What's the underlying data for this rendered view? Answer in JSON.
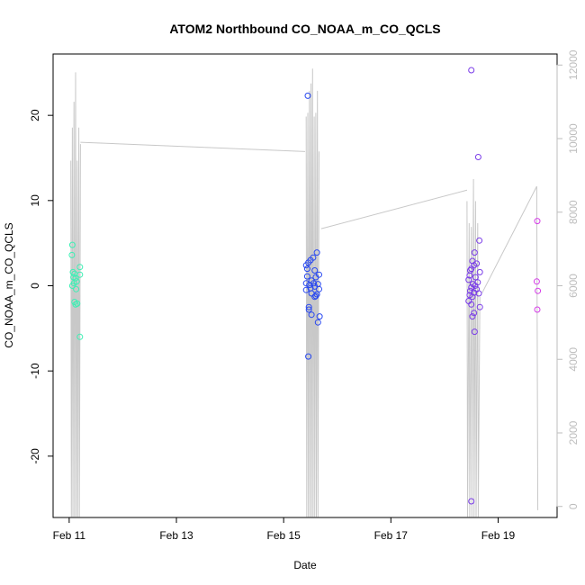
{
  "chart_data": {
    "type": "scatter",
    "title": "ATOM2 Northbound CO_NOAA_m_CO_QCLS",
    "xlabel": "Date",
    "ylabel": "CO_NOAA_m_CO_QCLS",
    "x_ticks": [
      "Feb 11",
      "Feb 13",
      "Feb 15",
      "Feb 17",
      "Feb 19"
    ],
    "x_tick_values": [
      11,
      13,
      15,
      17,
      19
    ],
    "xlim": [
      10.7,
      20.1
    ],
    "ylim": [
      -27.2,
      27.2
    ],
    "y_ticks": [
      -20,
      -10,
      0,
      10,
      20
    ],
    "y2_ticks": [
      0,
      2000,
      4000,
      6000,
      8000,
      10000,
      12000
    ],
    "y2lim": [
      -300,
      12300
    ],
    "colors": {
      "flight1": "#3cf0b4",
      "flight2": "#2848f0",
      "flight3": "#7a3ce8",
      "flight4": "#d63ce8",
      "altitude": "#c8c8c8",
      "y2_axis": "#bdbdbd",
      "axis": "#000000"
    },
    "series": [
      {
        "color_key": "flight1",
        "points": [
          {
            "x": 11.06,
            "y": 4.8
          },
          {
            "x": 11.05,
            "y": 3.6
          },
          {
            "x": 11.07,
            "y": 1.6
          },
          {
            "x": 11.1,
            "y": 1.4
          },
          {
            "x": 11.08,
            "y": 1.0
          },
          {
            "x": 11.12,
            "y": 0.9
          },
          {
            "x": 11.14,
            "y": 0.5
          },
          {
            "x": 11.09,
            "y": 0.3
          },
          {
            "x": 11.06,
            "y": 0.0
          },
          {
            "x": 11.13,
            "y": -0.4
          },
          {
            "x": 11.1,
            "y": -1.9
          },
          {
            "x": 11.15,
            "y": -2.1
          },
          {
            "x": 11.12,
            "y": -2.2
          },
          {
            "x": 11.2,
            "y": -6.0
          },
          {
            "x": 11.2,
            "y": 1.3
          },
          {
            "x": 11.2,
            "y": 2.2
          }
        ]
      },
      {
        "color_key": "flight2",
        "points": [
          {
            "x": 15.45,
            "y": 22.3
          },
          {
            "x": 15.62,
            "y": 3.9
          },
          {
            "x": 15.55,
            "y": 3.3
          },
          {
            "x": 15.5,
            "y": 3.0
          },
          {
            "x": 15.46,
            "y": 2.7
          },
          {
            "x": 15.42,
            "y": 2.4
          },
          {
            "x": 15.44,
            "y": 2.0
          },
          {
            "x": 15.58,
            "y": 1.8
          },
          {
            "x": 15.66,
            "y": 1.3
          },
          {
            "x": 15.44,
            "y": 1.1
          },
          {
            "x": 15.6,
            "y": 1.0
          },
          {
            "x": 15.52,
            "y": 0.6
          },
          {
            "x": 15.42,
            "y": 0.3
          },
          {
            "x": 15.56,
            "y": 0.3
          },
          {
            "x": 15.64,
            "y": 0.2
          },
          {
            "x": 15.48,
            "y": 0.1
          },
          {
            "x": 15.58,
            "y": -0.1
          },
          {
            "x": 15.5,
            "y": -0.3
          },
          {
            "x": 15.66,
            "y": -0.4
          },
          {
            "x": 15.42,
            "y": -0.5
          },
          {
            "x": 15.52,
            "y": -0.9
          },
          {
            "x": 15.62,
            "y": -1.0
          },
          {
            "x": 15.6,
            "y": -1.2
          },
          {
            "x": 15.58,
            "y": -1.3
          },
          {
            "x": 15.47,
            "y": -2.5
          },
          {
            "x": 15.47,
            "y": -2.8
          },
          {
            "x": 15.52,
            "y": -3.4
          },
          {
            "x": 15.67,
            "y": -3.6
          },
          {
            "x": 15.64,
            "y": -4.3
          },
          {
            "x": 15.46,
            "y": -8.3
          }
        ]
      },
      {
        "color_key": "flight3",
        "points": [
          {
            "x": 18.5,
            "y": 25.3
          },
          {
            "x": 18.63,
            "y": 15.1
          },
          {
            "x": 18.65,
            "y": 5.3
          },
          {
            "x": 18.56,
            "y": 3.9
          },
          {
            "x": 18.52,
            "y": 2.9
          },
          {
            "x": 18.6,
            "y": 2.6
          },
          {
            "x": 18.55,
            "y": 2.4
          },
          {
            "x": 18.5,
            "y": 2.0
          },
          {
            "x": 18.48,
            "y": 1.8
          },
          {
            "x": 18.66,
            "y": 1.6
          },
          {
            "x": 18.47,
            "y": 1.2
          },
          {
            "x": 18.58,
            "y": 1.0
          },
          {
            "x": 18.45,
            "y": 0.7
          },
          {
            "x": 18.62,
            "y": 0.4
          },
          {
            "x": 18.53,
            "y": 0.2
          },
          {
            "x": 18.57,
            "y": 0.0
          },
          {
            "x": 18.5,
            "y": -0.2
          },
          {
            "x": 18.6,
            "y": -0.4
          },
          {
            "x": 18.48,
            "y": -0.6
          },
          {
            "x": 18.55,
            "y": -0.8
          },
          {
            "x": 18.64,
            "y": -0.9
          },
          {
            "x": 18.47,
            "y": -1.1
          },
          {
            "x": 18.52,
            "y": -1.3
          },
          {
            "x": 18.45,
            "y": -1.8
          },
          {
            "x": 18.5,
            "y": -2.2
          },
          {
            "x": 18.66,
            "y": -2.5
          },
          {
            "x": 18.55,
            "y": -3.2
          },
          {
            "x": 18.52,
            "y": -3.6
          },
          {
            "x": 18.56,
            "y": -5.4
          },
          {
            "x": 18.5,
            "y": -25.3
          }
        ]
      },
      {
        "color_key": "flight4",
        "points": [
          {
            "x": 19.73,
            "y": 7.6
          },
          {
            "x": 19.72,
            "y": 0.5
          },
          {
            "x": 19.74,
            "y": -0.6
          },
          {
            "x": 19.73,
            "y": -2.8
          }
        ]
      }
    ],
    "altitude_series": {
      "color_key": "altitude",
      "profiles": [
        {
          "x": [
            11.03,
            11.06,
            11.09,
            11.12,
            11.15,
            11.18,
            11.21
          ],
          "tops": [
            9400,
            10300,
            11000,
            11800
          ],
          "end": 9850
        },
        {
          "x": [
            15.42,
            15.45,
            15.48,
            15.51,
            15.54,
            15.57,
            15.6,
            15.63,
            15.66
          ],
          "tops": [
            10600,
            10700,
            11300,
            11500,
            11900
          ],
          "end": 9650
        },
        {
          "x": [
            18.42,
            18.46,
            18.5,
            18.54,
            18.58,
            18.62,
            18.66
          ],
          "tops": [
            8300,
            7700,
            7600,
            8900
          ],
          "end": 5700
        }
      ],
      "segments": [
        {
          "x": [
            11.21,
            15.4
          ],
          "y": [
            9900,
            9650
          ]
        },
        {
          "x": [
            15.7,
            18.42
          ],
          "y": [
            7550,
            8600
          ]
        },
        {
          "x": [
            18.7,
            19.72
          ],
          "y": [
            5800,
            8700
          ]
        },
        {
          "x": [
            19.72,
            19.74
          ],
          "y": [
            8700,
            -100
          ]
        }
      ]
    }
  }
}
